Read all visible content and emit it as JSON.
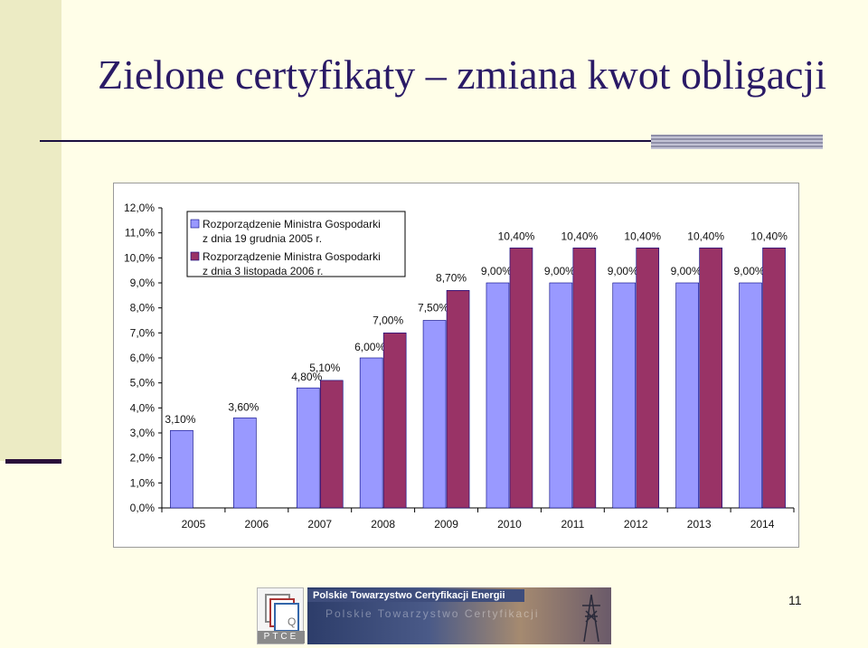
{
  "slide": {
    "title": "Zielone certyfikaty – zmiana kwot obligacji",
    "page_number": "11"
  },
  "logo": {
    "org_name": "Polskie Towarzystwo Certyfikacji Energii",
    "ghost_text": "Polskie Towarzystwo Certyfikacji",
    "acronym": "PTCE"
  },
  "chart_data": {
    "type": "bar",
    "title": "",
    "xlabel": "",
    "ylabel": "",
    "categories": [
      "2005",
      "2006",
      "2007",
      "2008",
      "2009",
      "2010",
      "2011",
      "2012",
      "2013",
      "2014"
    ],
    "series": [
      {
        "name": "Rozporządzenie Ministra Gospodarki z dnia 19 grudnia 2005 r.",
        "legend_lines": [
          "Rozporządzenie Ministra Gospodarki",
          "z dnia 19 grudnia 2005 r."
        ],
        "color": "#9999ff",
        "values": [
          3.1,
          3.6,
          4.8,
          6.0,
          7.5,
          9.0,
          9.0,
          9.0,
          9.0,
          9.0
        ],
        "labels": [
          "3,10%",
          "3,60%",
          "4,80%",
          "6,00%",
          "7,50%",
          "9,00%",
          "9,00%",
          "9,00%",
          "9,00%",
          "9,00%"
        ]
      },
      {
        "name": "Rozporządzenie Ministra Gospodarki z dnia 3 listopada 2006 r.",
        "legend_lines": [
          "Rozporządzenie Ministra Gospodarki",
          "z dnia 3 listopada 2006 r."
        ],
        "color": "#993366",
        "values": [
          null,
          null,
          5.1,
          7.0,
          8.7,
          10.4,
          10.4,
          10.4,
          10.4,
          10.4
        ],
        "labels": [
          "",
          "",
          "5,10%",
          "7,00%",
          "8,70%",
          "10,40%",
          "10,40%",
          "10,40%",
          "10,40%",
          "10,40%"
        ]
      }
    ],
    "ylim": [
      0,
      12
    ],
    "yticks": [
      "0,0%",
      "1,0%",
      "2,0%",
      "3,0%",
      "4,0%",
      "5,0%",
      "6,0%",
      "7,0%",
      "8,0%",
      "9,0%",
      "10,0%",
      "11,0%",
      "12,0%"
    ],
    "grid": false,
    "legend_position": "top-left",
    "bar_outline_color": "#000080"
  }
}
